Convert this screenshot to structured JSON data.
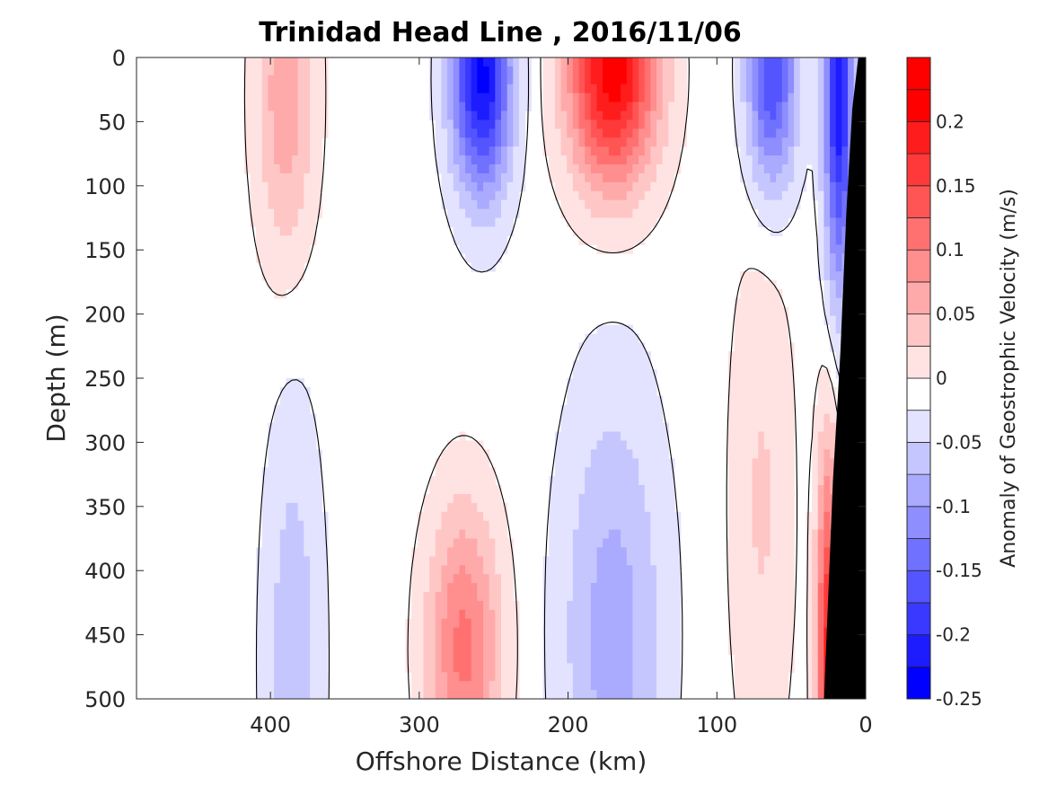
{
  "chart_data": {
    "type": "heatmap",
    "title": "Trinidad Head Line , 2016/11/06",
    "xlabel": "Offshore Distance (km)",
    "ylabel": "Depth (m)",
    "colorbar_label": "Anomaly of Geostrophic Velocity (m/s)",
    "xlim": [
      490,
      0
    ],
    "x_reversed": true,
    "ylim": [
      0,
      500
    ],
    "y_reversed": true,
    "x_ticks": [
      400,
      300,
      200,
      100,
      0
    ],
    "y_ticks": [
      0,
      50,
      100,
      150,
      200,
      250,
      300,
      350,
      400,
      450,
      500
    ],
    "colorbar_ticks": [
      -0.25,
      -0.2,
      -0.15,
      -0.1,
      -0.05,
      0,
      0.05,
      0.1,
      0.15,
      0.2
    ],
    "colorbar_tick_labels": [
      "-0.25",
      "-0.2",
      "-0.15",
      "-0.1",
      "-0.05",
      "0",
      "0.05",
      "0.1",
      "0.15",
      "0.2"
    ],
    "colorbar_range": [
      -0.25,
      0.25
    ],
    "contour_levels_step": 0.025,
    "colormap": {
      "negative": "#0000ff",
      "zero": "#ffffff",
      "positive": "#ff0000"
    },
    "bathymetry_color": "#000000",
    "zero_contour_color": "#000000",
    "features": [
      {
        "kind": "core",
        "sign": "negative",
        "x_km": 258,
        "depth_m": 15,
        "peak": -0.22,
        "half_width_km": 20,
        "e_folding_depth_m": 90
      },
      {
        "kind": "core",
        "sign": "positive",
        "x_km": 170,
        "depth_m": 10,
        "peak": 0.23,
        "half_width_km": 30,
        "e_folding_depth_m": 90
      },
      {
        "kind": "core",
        "sign": "negative",
        "x_km": 63,
        "depth_m": 15,
        "peak": -0.16,
        "half_width_km": 17,
        "e_folding_depth_m": 90
      },
      {
        "kind": "core",
        "sign": "negative",
        "x_km": 18,
        "depth_m": 20,
        "peak": -0.21,
        "half_width_km": 10,
        "e_folding_depth_m": 160
      },
      {
        "kind": "core",
        "sign": "positive",
        "x_km": 390,
        "depth_m": 30,
        "peak": 0.08,
        "half_width_km": 20,
        "e_folding_depth_m": 130
      },
      {
        "kind": "core",
        "sign": "positive",
        "x_km": 270,
        "depth_m": 460,
        "peak": 0.12,
        "half_width_km": 25,
        "e_folding_depth_m": 110
      },
      {
        "kind": "core",
        "sign": "negative",
        "x_km": 170,
        "depth_m": 450,
        "peak": -0.075,
        "half_width_km": 35,
        "e_folding_depth_m": 190
      },
      {
        "kind": "core",
        "sign": "negative",
        "x_km": 385,
        "depth_m": 470,
        "peak": -0.055,
        "half_width_km": 20,
        "e_folding_depth_m": 200
      },
      {
        "kind": "core",
        "sign": "positive",
        "x_km": 70,
        "depth_m": 350,
        "peak": 0.04,
        "half_width_km": 22,
        "e_folding_depth_m": 220
      },
      {
        "kind": "core",
        "sign": "positive",
        "x_km": 25,
        "depth_m": 480,
        "peak": 0.2,
        "half_width_km": 8,
        "e_folding_depth_m": 170
      }
    ]
  }
}
